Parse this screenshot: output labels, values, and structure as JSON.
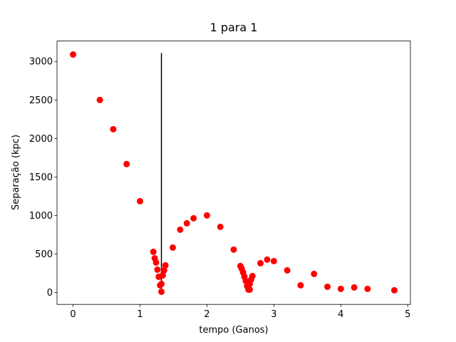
{
  "chart_data": {
    "type": "scatter",
    "title": "1 para 1",
    "x_label": "tempo (Ganos)",
    "y_label": "Separação (kpc)",
    "color": "#ff0000",
    "x": [
      0,
      0.4,
      0.6,
      0.8,
      1.0,
      1.2,
      1.22,
      1.24,
      1.26,
      1.28,
      1.3,
      1.32,
      1.32,
      1.34,
      1.36,
      1.38,
      1.49,
      1.6,
      1.7,
      1.8,
      2.0,
      2.2,
      2.4,
      2.5,
      2.52,
      2.54,
      2.56,
      2.58,
      2.6,
      2.62,
      2.64,
      2.64,
      2.66,
      2.68,
      2.8,
      2.9,
      3.0,
      3.2,
      3.4,
      3.6,
      3.8,
      4.0,
      4.2,
      4.4,
      4.8
    ],
    "y": [
      3090,
      2500,
      2120,
      1667,
      1185,
      528,
      444,
      389,
      296,
      204,
      93,
      111,
      9,
      222,
      287,
      352,
      583,
      815,
      898,
      963,
      1000,
      852,
      556,
      343,
      306,
      259,
      204,
      148,
      83,
      37,
      37,
      111,
      167,
      213,
      380,
      426,
      407,
      287,
      93,
      241,
      74,
      46,
      65,
      46,
      28
    ],
    "vline": {
      "x": 1.32,
      "ymin": 0,
      "ymax": 3110,
      "color": "#000000"
    },
    "xlim": [
      -0.24,
      5.04
    ],
    "xticks": [
      0,
      1,
      2,
      3,
      4,
      5
    ],
    "ylim": [
      -155,
      3265
    ],
    "yticks": [
      0,
      500,
      1000,
      1500,
      2000,
      2500,
      3000
    ]
  }
}
